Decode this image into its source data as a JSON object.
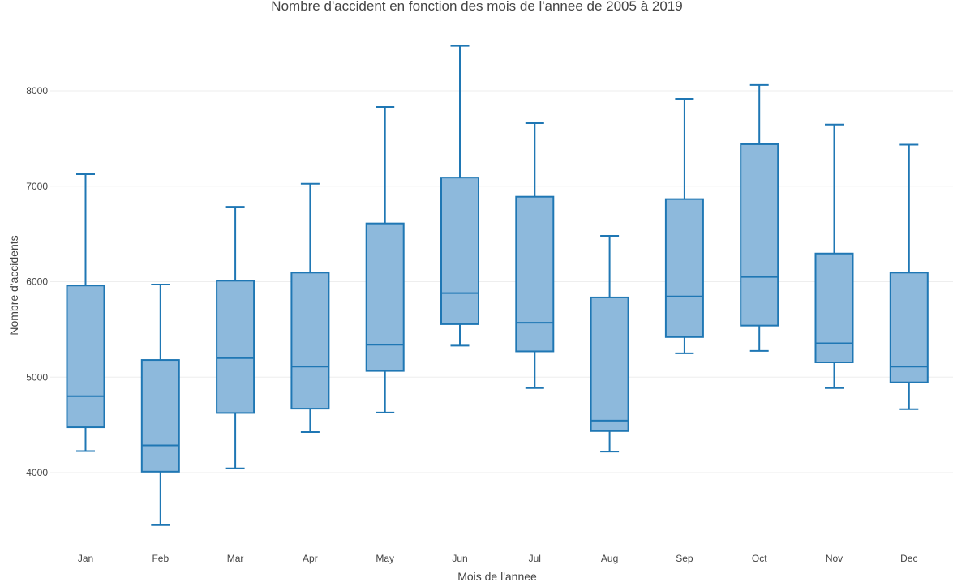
{
  "chart_data": {
    "type": "box",
    "title": "Nombre d'accident en fonction des mois de l'annee de 2005 à 2019",
    "xlabel": "Mois de l'annee",
    "ylabel": "Nombre d'accidents",
    "categories": [
      "Jan",
      "Feb",
      "Mar",
      "Apr",
      "May",
      "Jun",
      "Jul",
      "Aug",
      "Sep",
      "Oct",
      "Nov",
      "Dec"
    ],
    "y_ticks": [
      4000,
      5000,
      6000,
      7000,
      8000
    ],
    "ylim": [
      3200,
      8750
    ],
    "grid": true,
    "legend": false,
    "colors": {
      "box_fill": "#8db9dc",
      "box_line": "#1f77b4",
      "grid": "#eeeeee",
      "text": "#444444"
    },
    "boxes": [
      {
        "category": "Jan",
        "min": 4225,
        "q1": 4475,
        "median": 4800,
        "q3": 5960,
        "max": 7125
      },
      {
        "category": "Feb",
        "min": 3450,
        "q1": 4010,
        "median": 4285,
        "q3": 5180,
        "max": 5970
      },
      {
        "category": "Mar",
        "min": 4045,
        "q1": 4625,
        "median": 5200,
        "q3": 6010,
        "max": 6785
      },
      {
        "category": "Apr",
        "min": 4425,
        "q1": 4670,
        "median": 5110,
        "q3": 6095,
        "max": 7025
      },
      {
        "category": "May",
        "min": 4630,
        "q1": 5065,
        "median": 5340,
        "q3": 6610,
        "max": 7830
      },
      {
        "category": "Jun",
        "min": 5330,
        "q1": 5555,
        "median": 5880,
        "q3": 7090,
        "max": 8470
      },
      {
        "category": "Jul",
        "min": 4885,
        "q1": 5270,
        "median": 5570,
        "q3": 6890,
        "max": 7660
      },
      {
        "category": "Aug",
        "min": 4220,
        "q1": 4435,
        "median": 4545,
        "q3": 5835,
        "max": 6480
      },
      {
        "category": "Sep",
        "min": 5250,
        "q1": 5420,
        "median": 5845,
        "q3": 6865,
        "max": 7915
      },
      {
        "category": "Oct",
        "min": 5275,
        "q1": 5540,
        "median": 6050,
        "q3": 7440,
        "max": 8060
      },
      {
        "category": "Nov",
        "min": 4885,
        "q1": 5155,
        "median": 5355,
        "q3": 6295,
        "max": 7645
      },
      {
        "category": "Dec",
        "min": 4665,
        "q1": 4945,
        "median": 5110,
        "q3": 6095,
        "max": 7435
      }
    ]
  }
}
